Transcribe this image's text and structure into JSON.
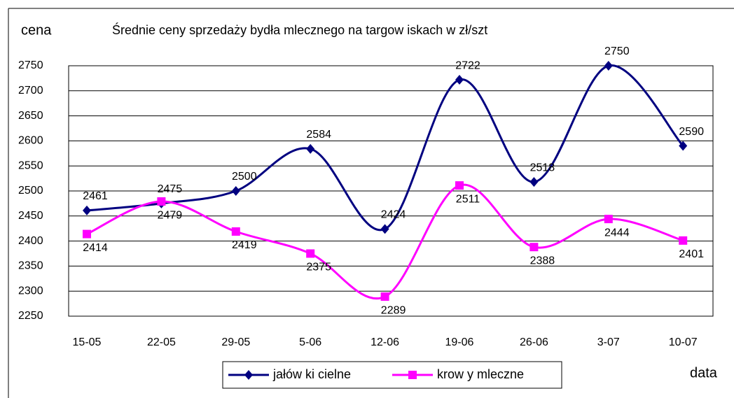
{
  "chart_data": {
    "type": "line",
    "title": "Średnie ceny sprzedaży bydła mlecznego na targow iskach w  zł/szt",
    "y_label": "cena",
    "x_label": "data",
    "categories": [
      "15-05",
      "22-05",
      "29-05",
      "5-06",
      "12-06",
      "19-06",
      "26-06",
      "3-07",
      "10-07"
    ],
    "series": [
      {
        "name": "jałów ki cielne",
        "color": "#000080",
        "marker": "diamond",
        "values": [
          2461,
          2475,
          2500,
          2584,
          2424,
          2722,
          2518,
          2750,
          2590
        ]
      },
      {
        "name": "krow y mleczne",
        "color": "#ff00ff",
        "marker": "square",
        "values": [
          2414,
          2479,
          2419,
          2375,
          2289,
          2511,
          2388,
          2444,
          2401
        ]
      }
    ],
    "ylim": [
      2250,
      2750
    ],
    "yticks": [
      2250,
      2300,
      2350,
      2400,
      2450,
      2500,
      2550,
      2600,
      2650,
      2700,
      2750
    ],
    "grid": true,
    "smooth": true,
    "legend": "bottom"
  }
}
